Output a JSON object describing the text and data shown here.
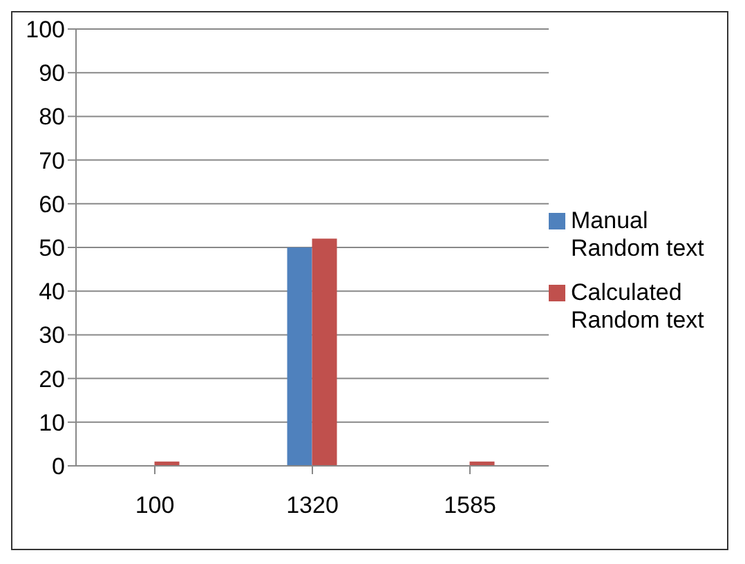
{
  "chart_data": {
    "type": "bar",
    "categories": [
      "100",
      "1320",
      "1585"
    ],
    "series": [
      {
        "name": "Manual Random text",
        "color": "#4f81bd",
        "values": [
          0,
          50,
          0
        ]
      },
      {
        "name": "Calculated Random text",
        "color": "#c0504d",
        "values": [
          1,
          52,
          1
        ]
      }
    ],
    "ylim": [
      0,
      100
    ],
    "yticks": [
      0,
      10,
      20,
      30,
      40,
      50,
      60,
      70,
      80,
      90,
      100
    ],
    "grid": "y",
    "legend": "right"
  }
}
